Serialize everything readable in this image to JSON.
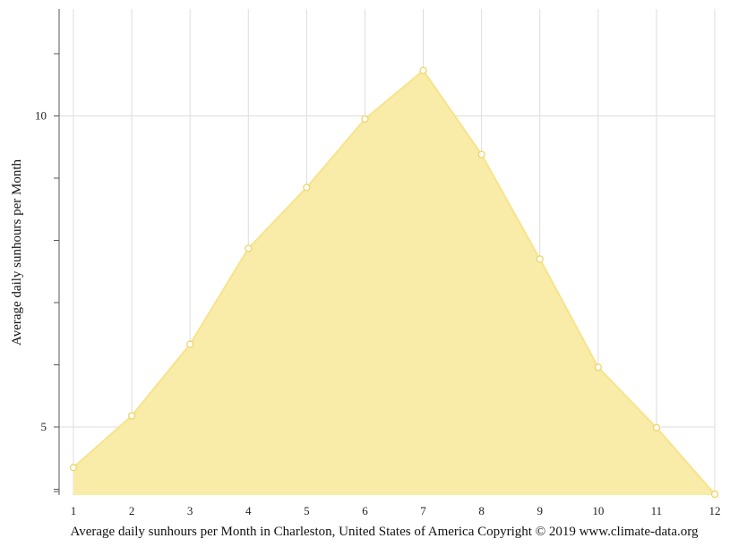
{
  "chart_data": {
    "type": "area",
    "x": [
      1,
      2,
      3,
      4,
      5,
      6,
      7,
      8,
      9,
      10,
      11,
      12
    ],
    "series": [
      {
        "values": [
          4.35,
          5.18,
          6.33,
          7.87,
          8.85,
          9.95,
          10.73,
          9.38,
          7.7,
          5.96,
          4.99,
          3.92
        ]
      }
    ],
    "xlabel": "",
    "ylabel": "Average daily sunhours per Month",
    "caption": "Average daily sunhours per Month in Charleston, United States of America Copyright © 2019 www.climate-data.org",
    "x_ticks": [
      "1",
      "2",
      "3",
      "4",
      "5",
      "6",
      "7",
      "8",
      "9",
      "10",
      "11",
      "12"
    ],
    "y_ticks_major": [
      "5",
      "10"
    ],
    "xlim": [
      1,
      12
    ],
    "ylim": [
      3.92,
      11.75
    ],
    "grid": true,
    "legend": "none",
    "colors": {
      "fill": "#f9eca9",
      "line": "#f8e38a",
      "marker_fill": "#ffffff",
      "marker_stroke": "#eed566",
      "grid": "#dddddd",
      "axis": "#555555"
    }
  }
}
